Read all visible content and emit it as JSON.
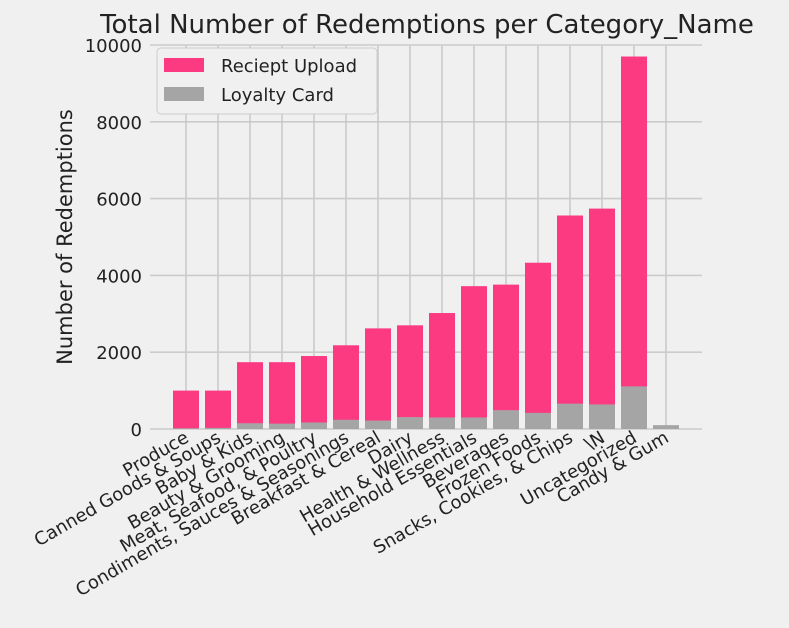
{
  "chart_data": {
    "type": "bar",
    "stacked": true,
    "title": "Total Number of Redemptions per Category_Name",
    "xlabel": "",
    "ylabel": "Number of Redemptions",
    "ylim": [
      0,
      10000
    ],
    "yticks": [
      0,
      2000,
      4000,
      6000,
      8000,
      10000
    ],
    "grid": true,
    "legend_position": "top-left",
    "categories": [
      "Produce",
      "Canned Goods & Soups",
      "Baby & Kids",
      "Beauty & Grooming",
      "Meat, Seafood, & Poultry",
      "Condiments, Sauces & Seasonings",
      "Breakfast & Cereal",
      "Dairy",
      "Health & Wellness",
      "Household Essentials",
      "Beverages",
      "Frozen Foods",
      "Snacks, Cookies, & Chips",
      "\\N",
      "Uncategorized",
      "Candy & Gum"
    ],
    "series": [
      {
        "name": "Reciept Upload",
        "color": "#fc3a81",
        "values": [
          1000,
          1000,
          1740,
          1740,
          1900,
          2180,
          2620,
          2700,
          3020,
          3720,
          3760,
          4330,
          5560,
          5740,
          9700,
          0
        ]
      },
      {
        "name": "Loyalty Card",
        "color": "#a5a5a5",
        "values": [
          20,
          30,
          150,
          140,
          170,
          240,
          220,
          310,
          300,
          300,
          490,
          420,
          660,
          640,
          1110,
          100
        ]
      }
    ]
  }
}
